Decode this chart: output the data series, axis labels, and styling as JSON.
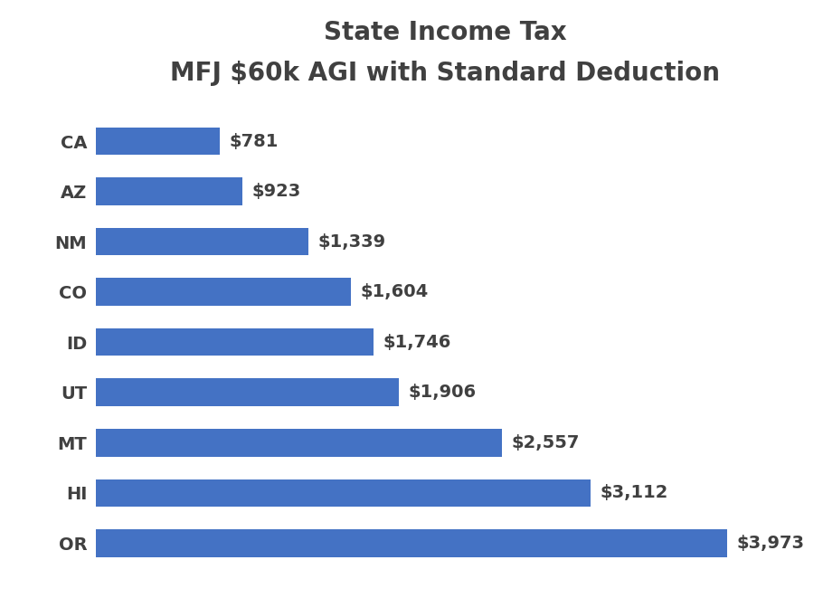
{
  "title_line1": "State Income Tax",
  "title_line2": "MFJ $60k AGI with Standard Deduction",
  "categories": [
    "OR",
    "HI",
    "MT",
    "UT",
    "ID",
    "CO",
    "NM",
    "AZ",
    "CA"
  ],
  "values": [
    3973,
    3112,
    2557,
    1906,
    1746,
    1604,
    1339,
    923,
    781
  ],
  "labels": [
    "$3,973",
    "$3,112",
    "$2,557",
    "$1,906",
    "$1,746",
    "$1,604",
    "$1,339",
    "$923",
    "$781"
  ],
  "bar_color": "#4472C4",
  "background_color": "#FFFFFF",
  "title_color": "#404040",
  "label_color": "#404040",
  "ytick_color": "#404040",
  "title_fontsize": 20,
  "label_fontsize": 14,
  "ytick_fontsize": 14,
  "xlim": [
    0,
    4400
  ],
  "bar_height": 0.55
}
